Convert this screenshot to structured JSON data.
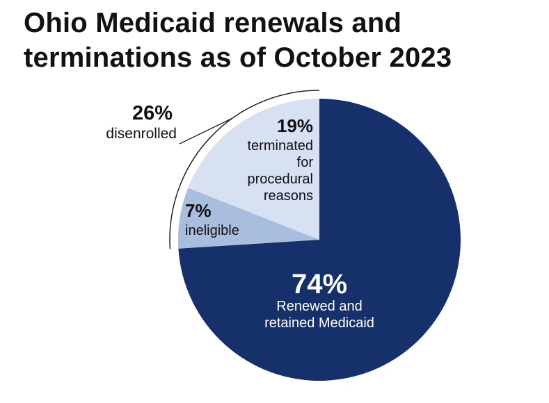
{
  "title_lines": [
    "Ohio Medicaid renewals and",
    "terminations as of October 2023"
  ],
  "chart_data": {
    "type": "pie",
    "title": "Ohio Medicaid renewals and terminations as of October 2023",
    "slices": [
      {
        "name": "renewed",
        "value": 74,
        "pct_label": "74%",
        "lines": [
          "Renewed and",
          "retained Medicaid"
        ],
        "color": "#16306b"
      },
      {
        "name": "ineligible",
        "value": 7,
        "pct_label": "7%",
        "lines": [
          "ineligible"
        ],
        "color": "#a9bddf"
      },
      {
        "name": "procedural",
        "value": 19,
        "pct_label": "19%",
        "lines": [
          "terminated",
          "for",
          "procedural",
          "reasons"
        ],
        "color": "#d8e1f2"
      }
    ],
    "group": {
      "pct_label": "26%",
      "label": "disenrolled",
      "members": [
        "ineligible",
        "procedural"
      ]
    }
  }
}
